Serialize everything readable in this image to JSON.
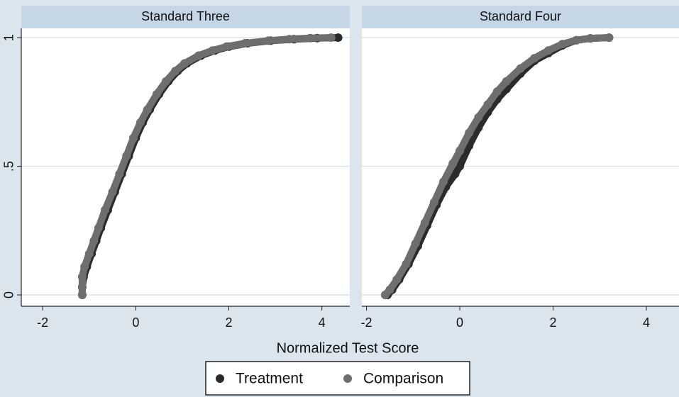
{
  "chart_data": [
    {
      "type": "scatter",
      "title": "Standard Three",
      "xlim": [
        -2.46,
        4.6
      ],
      "ylim": [
        -0.044,
        1.036
      ],
      "xticks": [
        -2,
        0,
        2,
        4
      ],
      "yticks": [
        0,
        {
          "value": 0.5,
          "label": ".5"
        },
        1
      ],
      "grid": true,
      "series": [
        {
          "x": [
            -1.15,
            -1.15,
            -1.12,
            -1.05,
            -0.95,
            -0.85,
            -0.75,
            -0.6,
            -0.45,
            -0.3,
            -0.15,
            0,
            0.15,
            0.3,
            0.5,
            0.7,
            0.9,
            1.1,
            1.4,
            1.7,
            2.0,
            2.4,
            2.9,
            3.4,
            3.9,
            4.35
          ],
          "values": [
            0,
            0.03,
            0.07,
            0.11,
            0.16,
            0.21,
            0.26,
            0.33,
            0.4,
            0.47,
            0.54,
            0.61,
            0.67,
            0.72,
            0.78,
            0.83,
            0.87,
            0.9,
            0.93,
            0.95,
            0.965,
            0.978,
            0.988,
            0.994,
            0.998,
            1
          ]
        },
        {
          "x": [
            -1.15,
            -1.15,
            -1.15,
            -1.1,
            -1.0,
            -0.9,
            -0.8,
            -0.66,
            -0.5,
            -0.35,
            -0.2,
            -0.05,
            0.1,
            0.25,
            0.45,
            0.65,
            0.85,
            1.05,
            1.35,
            1.65,
            1.95,
            2.35,
            2.85,
            3.3,
            3.75,
            4.2
          ],
          "values": [
            0,
            0.03,
            0.07,
            0.11,
            0.16,
            0.21,
            0.26,
            0.33,
            0.4,
            0.47,
            0.54,
            0.61,
            0.67,
            0.72,
            0.78,
            0.83,
            0.87,
            0.9,
            0.93,
            0.95,
            0.965,
            0.978,
            0.988,
            0.994,
            0.998,
            1
          ]
        }
      ]
    },
    {
      "type": "scatter",
      "title": "Standard Four",
      "xlim": [
        -2.1,
        4.7
      ],
      "ylim": [
        -0.044,
        1.036
      ],
      "xticks": [
        -2,
        0,
        2,
        4
      ],
      "yticks": [
        0,
        0.5,
        1
      ],
      "grid": true,
      "series": [
        {
          "x": [
            -1.55,
            -1.45,
            -1.3,
            -1.1,
            -0.9,
            -0.7,
            -0.5,
            -0.3,
            -0.1,
            0,
            0.2,
            0.4,
            0.6,
            0.8,
            1.0,
            1.3,
            1.6,
            1.9,
            2.2,
            2.5,
            2.8,
            3.2
          ],
          "values": [
            0,
            0.02,
            0.06,
            0.12,
            0.19,
            0.27,
            0.35,
            0.42,
            0.47,
            0.5,
            0.58,
            0.65,
            0.71,
            0.76,
            0.8,
            0.86,
            0.91,
            0.94,
            0.97,
            0.99,
            0.997,
            1
          ]
        },
        {
          "x": [
            -1.6,
            -1.5,
            -1.35,
            -1.15,
            -0.95,
            -0.75,
            -0.55,
            -0.35,
            -0.15,
            0,
            0.2,
            0.4,
            0.6,
            0.8,
            1.0,
            1.3,
            1.6,
            1.9,
            2.2,
            2.5,
            2.8,
            3.2
          ],
          "values": [
            0,
            0.02,
            0.06,
            0.12,
            0.2,
            0.28,
            0.36,
            0.44,
            0.51,
            0.56,
            0.63,
            0.69,
            0.74,
            0.79,
            0.83,
            0.88,
            0.92,
            0.95,
            0.975,
            0.99,
            0.997,
            1
          ]
        }
      ]
    }
  ],
  "x_label": "Normalized Test Score",
  "legend": [
    {
      "name": "Treatment",
      "color": "#2b2b2b"
    },
    {
      "name": "Comparison",
      "color": "#6e6e6e"
    }
  ]
}
